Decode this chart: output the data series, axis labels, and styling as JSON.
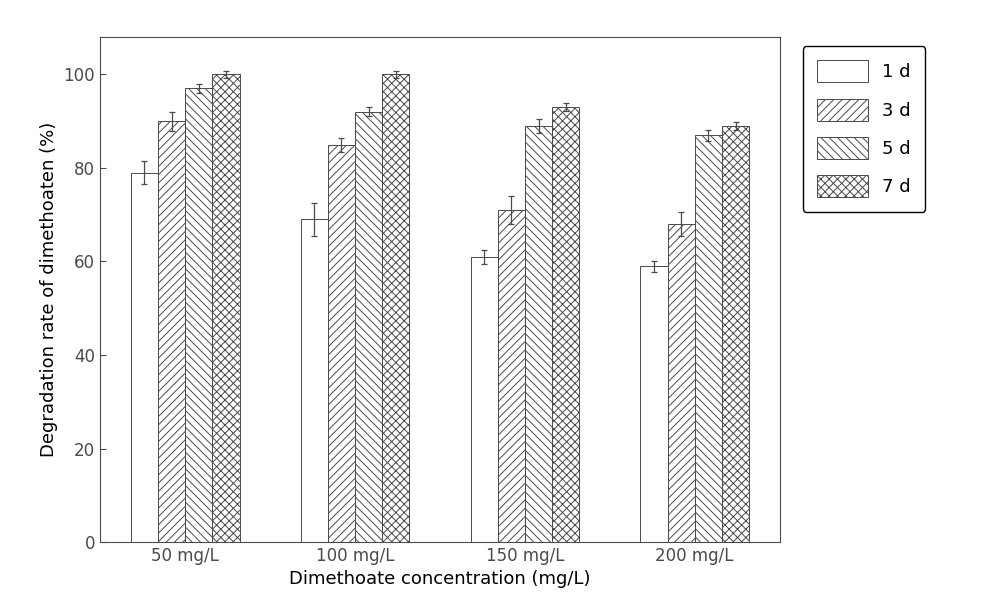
{
  "categories": [
    "50 mg/L",
    "100 mg/L",
    "150 mg/L",
    "200 mg/L"
  ],
  "series": {
    "1 d": [
      79,
      69,
      61,
      59
    ],
    "3 d": [
      90,
      85,
      71,
      68
    ],
    "5 d": [
      97,
      92,
      89,
      87
    ],
    "7 d": [
      100,
      100,
      93,
      89
    ]
  },
  "errors": {
    "1 d": [
      2.5,
      3.5,
      1.5,
      1.2
    ],
    "3 d": [
      2.0,
      1.5,
      3.0,
      2.5
    ],
    "5 d": [
      1.0,
      1.0,
      1.5,
      1.2
    ],
    "7 d": [
      0.8,
      0.8,
      0.8,
      0.8
    ]
  },
  "xlabel": "Dimethoate concentration (mg/L)",
  "ylabel": "Degradation rate of dimethoaten (%)",
  "ylim": [
    0,
    108
  ],
  "yticks": [
    0,
    20,
    40,
    60,
    80,
    100
  ],
  "bar_width": 0.16,
  "legend_labels": [
    "1 d",
    "3 d",
    "5 d",
    "7 d"
  ],
  "edge_color": "#4a4a4a",
  "bar_facecolor": "#ffffff",
  "hatch_patterns": [
    "",
    "////",
    "\\\\\\\\",
    "xxxx"
  ],
  "figure_facecolor": "#ffffff",
  "font_size_axis_label": 13,
  "font_size_tick": 12,
  "font_size_legend": 13
}
